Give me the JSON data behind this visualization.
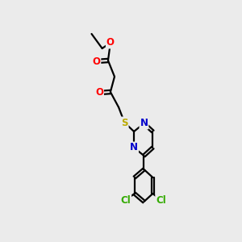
{
  "bg_color": "#ebebeb",
  "bond_color": "#000000",
  "bond_width": 1.6,
  "atom_colors": {
    "O": "#ff0000",
    "N": "#0000cc",
    "S": "#bbaa00",
    "Cl": "#33aa00",
    "C": "#000000"
  },
  "font_size": 8.5,
  "dbo": 0.06,
  "xlim": [
    0.5,
    7.5
  ],
  "ylim": [
    0.2,
    9.8
  ]
}
